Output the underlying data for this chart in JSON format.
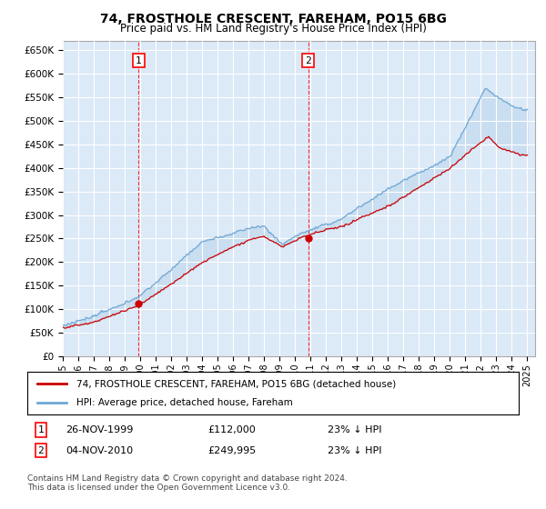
{
  "title": "74, FROSTHOLE CRESCENT, FAREHAM, PO15 6BG",
  "subtitle": "Price paid vs. HM Land Registry's House Price Index (HPI)",
  "ylabel_ticks": [
    "£0",
    "£50K",
    "£100K",
    "£150K",
    "£200K",
    "£250K",
    "£300K",
    "£350K",
    "£400K",
    "£450K",
    "£500K",
    "£550K",
    "£600K",
    "£650K"
  ],
  "ytick_values": [
    0,
    50000,
    100000,
    150000,
    200000,
    250000,
    300000,
    350000,
    400000,
    450000,
    500000,
    550000,
    600000,
    650000
  ],
  "ylim": [
    0,
    670000
  ],
  "xlim_start": 1995.0,
  "xlim_end": 2025.5,
  "background_color": "#ffffff",
  "plot_bg_color": "#dce9f7",
  "grid_color": "#ffffff",
  "hpi_color": "#6fa8d4",
  "price_color": "#cc0000",
  "marker1_date": 1999.9,
  "marker1_price": 112000,
  "marker2_date": 2010.84,
  "marker2_price": 249995,
  "legend_label_price": "74, FROSTHOLE CRESCENT, FAREHAM, PO15 6BG (detached house)",
  "legend_label_hpi": "HPI: Average price, detached house, Fareham",
  "annotation1_date": "26-NOV-1999",
  "annotation1_price": "£112,000",
  "annotation1_pct": "23% ↓ HPI",
  "annotation2_date": "04-NOV-2010",
  "annotation2_price": "£249,995",
  "annotation2_pct": "23% ↓ HPI",
  "footnote": "Contains HM Land Registry data © Crown copyright and database right 2024.\nThis data is licensed under the Open Government Licence v3.0."
}
